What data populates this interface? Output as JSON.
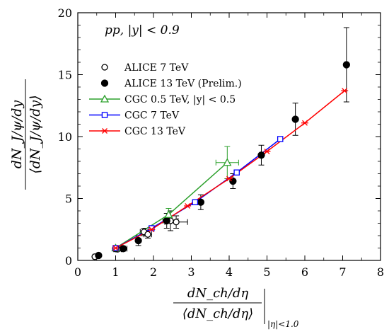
{
  "chart_data": {
    "type": "scatter",
    "annotation": "pp, |y| < 0.9",
    "xlabel_num": "dN_ch/dη",
    "xlabel_den": "⟨dN_ch/dη⟩",
    "xlabel_sub": "|η|<1.0",
    "ylabel_num": "dN_J/ψ/dy",
    "ylabel_den": "⟨dN_J/ψ/dy⟩",
    "xlim": [
      0,
      8
    ],
    "ylim": [
      0,
      20
    ],
    "xticks": [
      0,
      1,
      2,
      3,
      4,
      5,
      6,
      7,
      8
    ],
    "yticks": [
      0,
      5,
      10,
      15,
      20
    ],
    "legend_position": "upper-left",
    "grid": false,
    "series": [
      {
        "name": "ALICE 7 TeV",
        "marker": "open-circle",
        "color": "#000000",
        "points": [
          {
            "x": 0.45,
            "y": 0.3,
            "xerr": 0.05,
            "yerr": 0.1
          },
          {
            "x": 0.55,
            "y": 0.4,
            "xerr": 0.05,
            "yerr": 0.1
          },
          {
            "x": 1.05,
            "y": 0.9,
            "xerr": 0.1,
            "yerr": 0.1
          },
          {
            "x": 1.2,
            "y": 0.95,
            "xerr": 0.1,
            "yerr": 0.1
          },
          {
            "x": 1.75,
            "y": 2.3,
            "xerr": 0.1,
            "yerr": 0.3
          },
          {
            "x": 1.85,
            "y": 2.1,
            "xerr": 0.1,
            "yerr": 0.3
          },
          {
            "x": 2.45,
            "y": 3.2,
            "xerr": 0.2,
            "yerr": 0.8
          },
          {
            "x": 2.6,
            "y": 3.1,
            "xerr": 0.3,
            "yerr": 0.5
          }
        ]
      },
      {
        "name": "ALICE 13 TeV (Prelim.)",
        "marker": "filled-circle",
        "color": "#000000",
        "points": [
          {
            "x": 0.55,
            "y": 0.4,
            "xerr": 0,
            "yerr": 0.1
          },
          {
            "x": 1.0,
            "y": 0.95,
            "xerr": 0,
            "yerr": 0.2
          },
          {
            "x": 1.2,
            "y": 0.95,
            "xerr": 0,
            "yerr": 0.2
          },
          {
            "x": 1.6,
            "y": 1.6,
            "xerr": 0,
            "yerr": 0.4
          },
          {
            "x": 2.35,
            "y": 3.2,
            "xerr": 0,
            "yerr": 0.6
          },
          {
            "x": 3.25,
            "y": 4.7,
            "xerr": 0,
            "yerr": 0.6
          },
          {
            "x": 4.1,
            "y": 6.4,
            "xerr": 0,
            "yerr": 0.6
          },
          {
            "x": 4.85,
            "y": 8.5,
            "xerr": 0,
            "yerr": 0.8
          },
          {
            "x": 5.75,
            "y": 11.4,
            "xerr": 0,
            "yerr": 1.3
          },
          {
            "x": 7.1,
            "y": 15.8,
            "xerr": 0,
            "yerr": 3.0
          }
        ]
      },
      {
        "name": "CGC 0.5 TeV, |y| < 0.5",
        "marker": "open-triangle",
        "color": "#2ca02c",
        "line": true,
        "points": [
          {
            "x": 1.0,
            "y": 1.0
          },
          {
            "x": 2.4,
            "y": 3.7,
            "xerr": 0,
            "yerr": 0.5
          },
          {
            "x": 3.95,
            "y": 7.9,
            "xerr": 0.3,
            "yerr": 1.3
          }
        ]
      },
      {
        "name": "CGC 7 TeV",
        "marker": "open-square",
        "color": "#0000ff",
        "line": true,
        "points": [
          {
            "x": 1.0,
            "y": 1.0
          },
          {
            "x": 1.95,
            "y": 2.6
          },
          {
            "x": 3.1,
            "y": 4.7
          },
          {
            "x": 4.2,
            "y": 7.1
          },
          {
            "x": 5.35,
            "y": 9.8
          }
        ]
      },
      {
        "name": "CGC 13 TeV",
        "marker": "star",
        "color": "#ff0000",
        "line": true,
        "points": [
          {
            "x": 1.0,
            "y": 1.0
          },
          {
            "x": 1.95,
            "y": 2.5
          },
          {
            "x": 2.9,
            "y": 4.4
          },
          {
            "x": 4.0,
            "y": 6.6
          },
          {
            "x": 5.0,
            "y": 8.8
          },
          {
            "x": 6.0,
            "y": 11.1
          },
          {
            "x": 7.05,
            "y": 13.7
          }
        ]
      }
    ]
  }
}
